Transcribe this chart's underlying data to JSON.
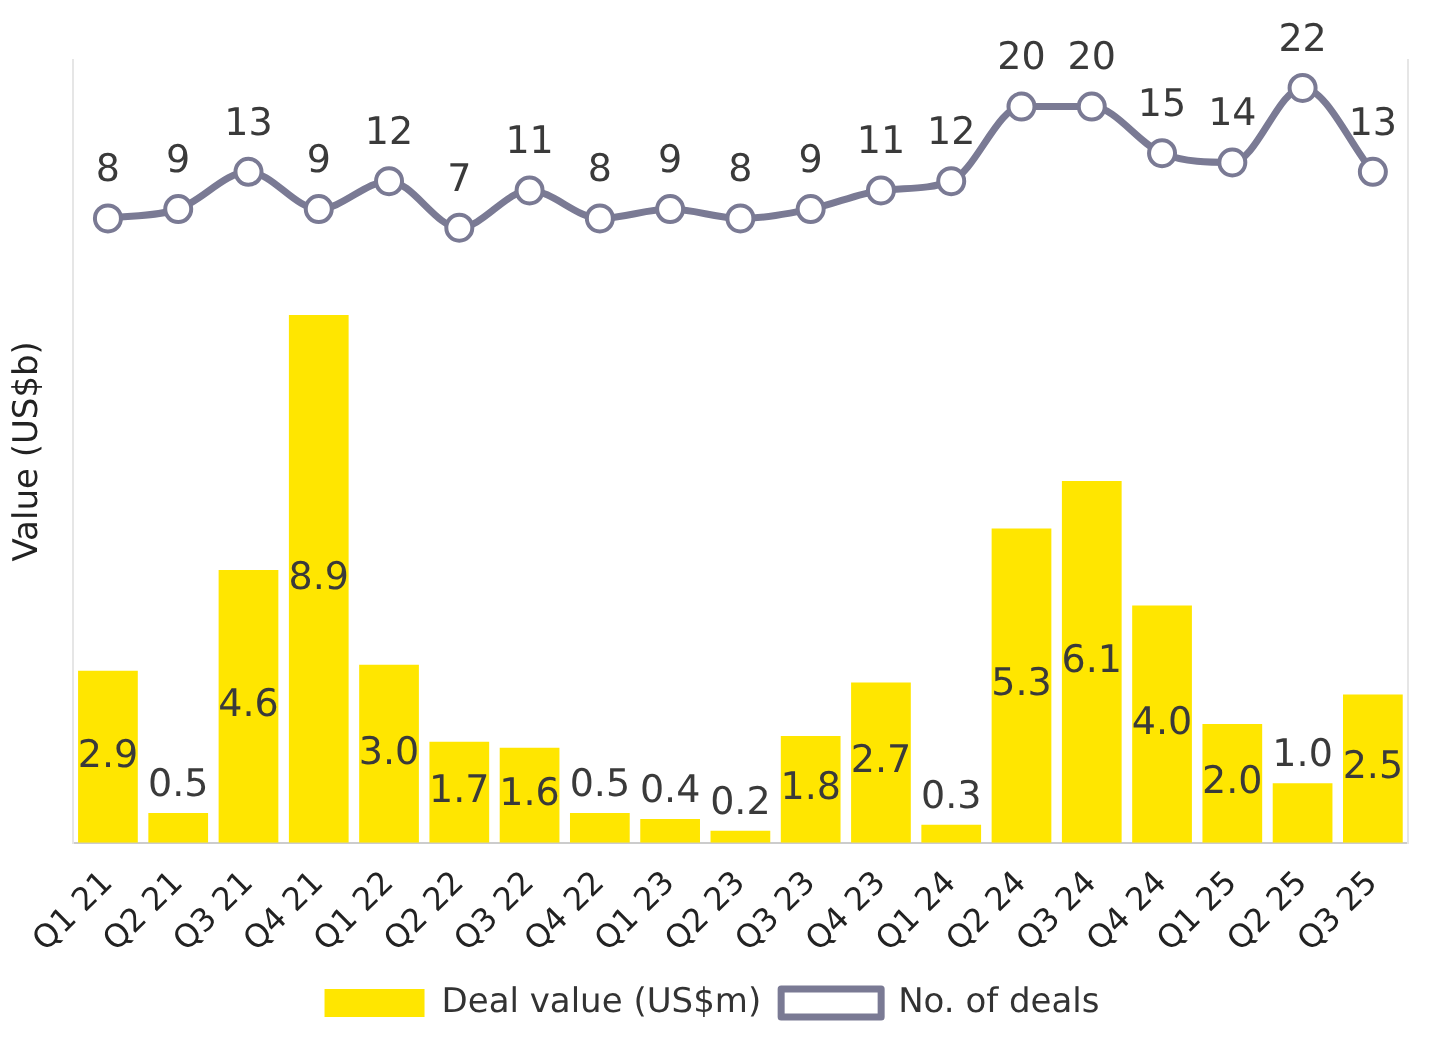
{
  "chart_data": {
    "type": "bar",
    "ylabel": "Value (US$b)",
    "categories": [
      "Q1 21",
      "Q2 21",
      "Q3 21",
      "Q4 21",
      "Q1 22",
      "Q2 22",
      "Q3 22",
      "Q4 22",
      "Q1 23",
      "Q2 23",
      "Q3 23",
      "Q4 23",
      "Q1 24",
      "Q2 24",
      "Q3 24",
      "Q4 24",
      "Q1 25",
      "Q2 25",
      "Q3 25"
    ],
    "series": [
      {
        "name": "Deal value (US$m)",
        "color": "#ffe600",
        "values": [
          2.9,
          0.5,
          4.6,
          8.9,
          3.0,
          1.7,
          1.6,
          0.5,
          0.4,
          0.2,
          1.8,
          2.7,
          0.3,
          5.3,
          6.1,
          4.0,
          2.0,
          1.0,
          2.5
        ],
        "value_labels": [
          "2.9",
          "0.5",
          "4.6",
          "8.9",
          "3.0",
          "1.7",
          "1.6",
          "0.5",
          "0.4",
          "0.2",
          "1.8",
          "2.7",
          "0.3",
          "5.3",
          "6.1",
          "4.0",
          "2.0",
          "1.0",
          "2.5"
        ]
      },
      {
        "name": "No. of deals",
        "type": "line",
        "axis": "y2",
        "color": "#7a7a94",
        "values": [
          8,
          9,
          13,
          9,
          12,
          7,
          11,
          8,
          9,
          8,
          9,
          11,
          12,
          20,
          20,
          15,
          14,
          22,
          13
        ]
      }
    ],
    "ylim": [
      0,
      13.2
    ],
    "y2lim": [
      -59,
      25
    ],
    "tick_labels": "x",
    "grid": false,
    "legend": "bottom",
    "marker": "circle",
    "line_style": "solid",
    "data_labels": true
  }
}
